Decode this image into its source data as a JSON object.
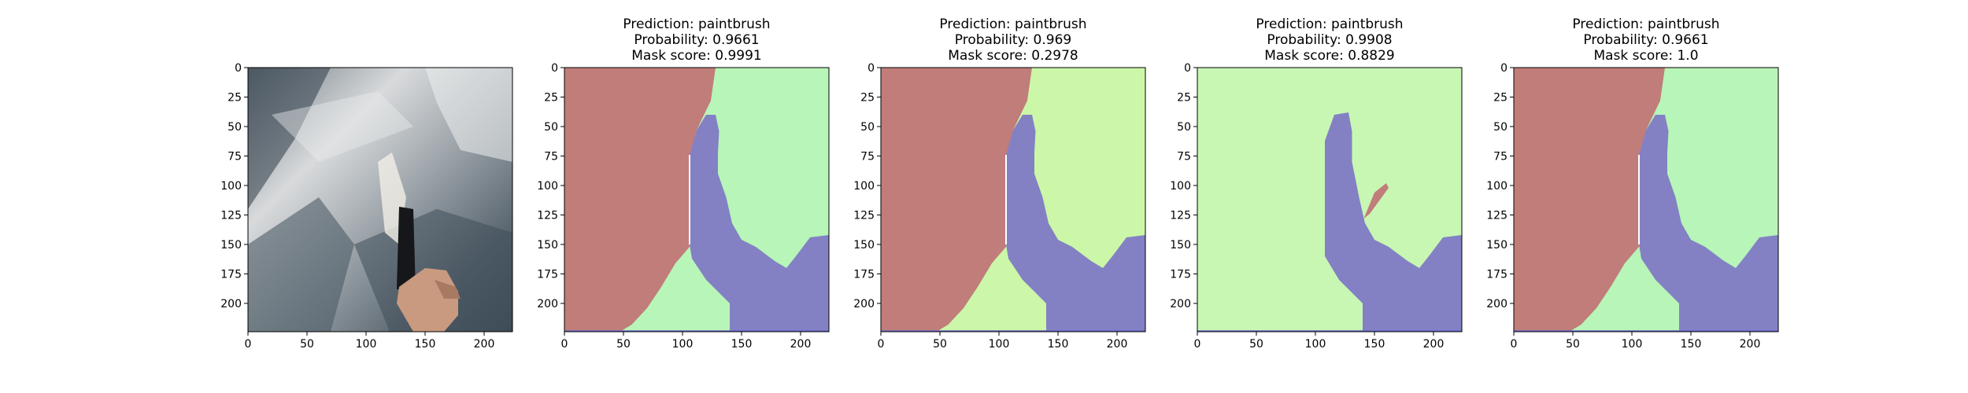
{
  "chart_data": [
    {
      "type": "image",
      "title_lines": [],
      "image": "photograph of a hand holding a paintbrush against a crumpled grey/silver fabric surface",
      "xlim": [
        0,
        224
      ],
      "ylim": [
        224,
        0
      ],
      "xticks": [
        0,
        50,
        100,
        150,
        200
      ],
      "yticks": [
        0,
        25,
        50,
        75,
        100,
        125,
        150,
        175,
        200
      ]
    },
    {
      "type": "segmentation_mask",
      "title_lines": [
        "Prediction: paintbrush",
        "Probability: 0.9661",
        "Mask score: 0.9991"
      ],
      "prediction": "paintbrush",
      "probability": 0.9661,
      "mask_score": 0.9991,
      "variant": "A",
      "right_region_color": "#b8f5b8",
      "xlim": [
        0,
        224
      ],
      "ylim": [
        224,
        0
      ],
      "xticks": [
        0,
        50,
        100,
        150,
        200
      ],
      "yticks": [
        0,
        25,
        50,
        75,
        100,
        125,
        150,
        175,
        200
      ]
    },
    {
      "type": "segmentation_mask",
      "title_lines": [
        "Prediction: paintbrush",
        "Probability: 0.969",
        "Mask score: 0.2978"
      ],
      "prediction": "paintbrush",
      "probability": 0.969,
      "mask_score": 0.2978,
      "variant": "A",
      "right_region_color": "#ccf7a8",
      "xlim": [
        0,
        224
      ],
      "ylim": [
        224,
        0
      ],
      "xticks": [
        0,
        50,
        100,
        150,
        200
      ],
      "yticks": [
        0,
        25,
        50,
        75,
        100,
        125,
        150,
        175,
        200
      ]
    },
    {
      "type": "segmentation_mask",
      "title_lines": [
        "Prediction: paintbrush",
        "Probability: 0.9908",
        "Mask score: 0.8829"
      ],
      "prediction": "paintbrush",
      "probability": 0.9908,
      "mask_score": 0.8829,
      "variant": "B",
      "right_region_color": "#c8f7b4",
      "xlim": [
        0,
        224
      ],
      "ylim": [
        224,
        0
      ],
      "xticks": [
        0,
        50,
        100,
        150,
        200
      ],
      "yticks": [
        0,
        25,
        50,
        75,
        100,
        125,
        150,
        175,
        200
      ]
    },
    {
      "type": "segmentation_mask",
      "title_lines": [
        "Prediction: paintbrush",
        "Probability: 0.9661",
        "Mask score: 1.0"
      ],
      "prediction": "paintbrush",
      "probability": 0.9661,
      "mask_score": 1.0,
      "variant": "A",
      "right_region_color": "#b8f5b8",
      "xlim": [
        0,
        224
      ],
      "ylim": [
        224,
        0
      ],
      "xticks": [
        0,
        50,
        100,
        150,
        200
      ],
      "yticks": [
        0,
        25,
        50,
        75,
        100,
        125,
        150,
        175,
        200
      ]
    }
  ],
  "colors": {
    "mask_red": "#c07d7a",
    "mask_blue": "#8381c4",
    "mask_green": "#b8f5b8",
    "axis": "#000000"
  }
}
